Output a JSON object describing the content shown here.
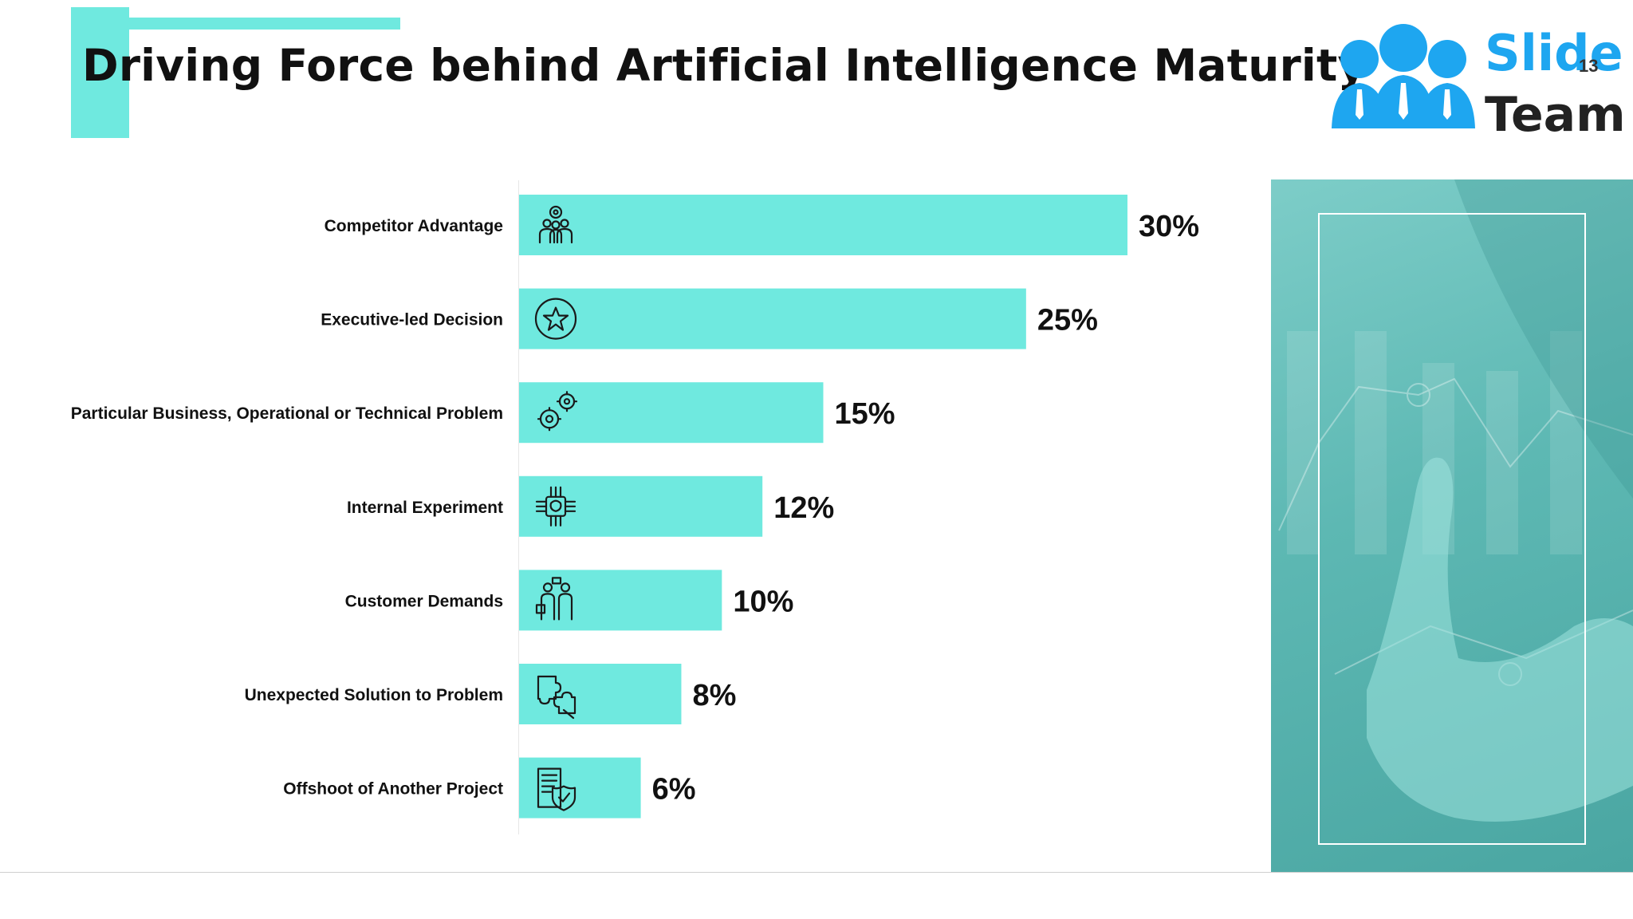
{
  "slide": {
    "title": "Driving Force behind Artificial Intelligence Maturity",
    "page_number": "13"
  },
  "logo": {
    "line1": "Slide",
    "line2": "Team"
  },
  "colors": {
    "bar": "#6fe9df",
    "accent": "#6fe9df",
    "text": "#111111",
    "logo_blue": "#1ea6f0"
  },
  "chart_data": {
    "type": "bar",
    "orientation": "horizontal",
    "categories": [
      "Competitor Advantage",
      "Executive-led Decision",
      "Particular Business, Operational or Technical Problem",
      "Internal Experiment",
      "Customer Demands",
      "Unexpected Solution to Problem",
      "Offshoot of Another Project"
    ],
    "values": [
      30,
      25,
      15,
      12,
      10,
      8,
      6
    ],
    "data_labels": [
      "30%",
      "25%",
      "15%",
      "12%",
      "10%",
      "8%",
      "6%"
    ],
    "icons": [
      "team-gear-icon",
      "star-badge-icon",
      "gears-icon",
      "ai-chip-icon",
      "customers-icon",
      "puzzle-icon",
      "document-shield-icon"
    ],
    "xlim": [
      0,
      30
    ],
    "unit": "%",
    "grid": false,
    "legend": "none"
  }
}
